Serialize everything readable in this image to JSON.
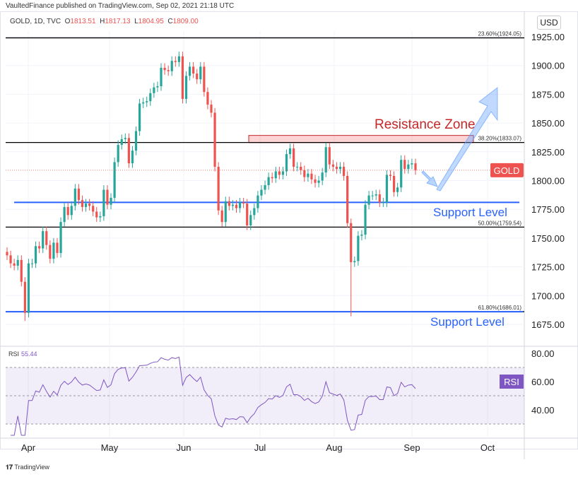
{
  "header": {
    "published": "VaultedFinance published on TradingView.com, Sep 02, 2021 21:18 UTC",
    "symbol": "GOLD, 1D, TVC",
    "o_label": "O",
    "o": "1813.51",
    "h_label": "H",
    "h": "1817.13",
    "l_label": "L",
    "l": "1804.95",
    "c_label": "C",
    "c": "1809.00"
  },
  "currency": "USD",
  "footer": {
    "brand": "TradingView"
  },
  "chart_data": {
    "type": "candlestick",
    "title": "GOLD, 1D, TVC",
    "x_tick_labels": [
      "Apr",
      "May",
      "Jun",
      "Jul",
      "Aug",
      "Sep",
      "Oct"
    ],
    "y_ticks": [
      1925,
      1900,
      1875,
      1850,
      1825,
      1800,
      1775,
      1750,
      1725,
      1700,
      1675
    ],
    "y_tick_labels": [
      "1925.00",
      "1900.00",
      "1875.00",
      "1850.00",
      "1825.00",
      "1800.00",
      "1775.00",
      "1750.00",
      "1725.00",
      "1700.00",
      "1675.00"
    ],
    "ylim": [
      1660,
      1940
    ],
    "close": [
      1735,
      1728,
      1726,
      1731,
      1712,
      1685,
      1728,
      1728,
      1743,
      1741,
      1756,
      1744,
      1732,
      1746,
      1737,
      1764,
      1777,
      1770,
      1778,
      1793,
      1783,
      1777,
      1780,
      1778,
      1773,
      1768,
      1769,
      1792,
      1779,
      1785,
      1816,
      1831,
      1836,
      1837,
      1815,
      1826,
      1843,
      1867,
      1868,
      1869,
      1876,
      1881,
      1882,
      1898,
      1896,
      1895,
      1904,
      1903,
      1908,
      1871,
      1891,
      1899,
      1893,
      1888,
      1899,
      1877,
      1866,
      1859,
      1812,
      1774,
      1764,
      1782,
      1778,
      1779,
      1776,
      1781,
      1780,
      1761,
      1770,
      1776,
      1787,
      1792,
      1796,
      1803,
      1802,
      1808,
      1805,
      1808,
      1823,
      1828,
      1812,
      1812,
      1809,
      1803,
      1806,
      1801,
      1798,
      1800,
      1807,
      1829,
      1814,
      1812,
      1810,
      1812,
      1804,
      1763,
      1729,
      1730,
      1752,
      1753,
      1779,
      1787,
      1787,
      1788,
      1781,
      1781,
      1805,
      1804,
      1790,
      1794,
      1818,
      1810,
      1814,
      1815,
      1809
    ],
    "low_overrides": [
      {
        "index": 5,
        "low": 1678
      },
      {
        "index": 96,
        "low": 1682
      }
    ],
    "current_price": 1809.0,
    "price_label": "GOLD",
    "fib_levels": [
      {
        "level": 1924.05,
        "label": "23.60%(1924.05)"
      },
      {
        "level": 1833.07,
        "label": "38.20%(1833.07)"
      },
      {
        "level": 1759.54,
        "label": "50.00%(1759.54)"
      },
      {
        "level": 1686.01,
        "label": "61.80%(1686.01)"
      }
    ],
    "annotations": {
      "resistance": {
        "label": "Resistance Zone",
        "from": 1833,
        "to": 1838
      },
      "support": [
        {
          "level": 1781,
          "label": "Support Level"
        },
        {
          "level": 1686,
          "label": "Support Level"
        }
      ]
    },
    "rsi": {
      "label": "RSI",
      "value": "55.44",
      "period": 14,
      "ylim": [
        20,
        82
      ],
      "bands": [
        30,
        50,
        70
      ],
      "y_ticks": [
        80,
        60,
        40
      ],
      "y_tick_labels": [
        "80.00",
        "60.00",
        "40.00"
      ],
      "badge": "RSI"
    },
    "colors": {
      "up": "#26a69a",
      "down": "#ef5350",
      "support": "#2962ff",
      "resistance": "#c62828",
      "rsi": "#7e57c2"
    }
  }
}
